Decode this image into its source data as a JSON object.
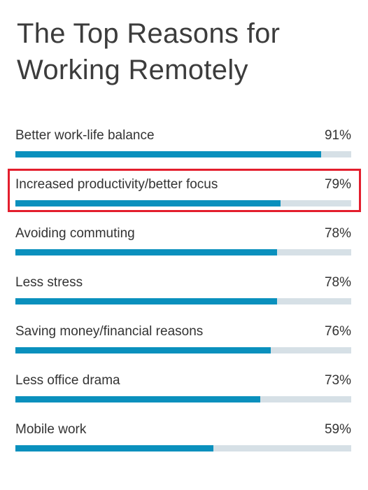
{
  "title": "The Top Reasons for Working Remotely",
  "chart_data": {
    "type": "bar",
    "orientation": "horizontal",
    "title": "The Top Reasons for Working Remotely",
    "categories": [
      "Better work-life balance",
      "Increased productivity/better focus",
      "Avoiding commuting",
      "Less stress",
      "Saving money/financial reasons",
      "Less office drama",
      "Mobile work"
    ],
    "values": [
      91,
      79,
      78,
      78,
      76,
      73,
      59
    ],
    "value_labels": [
      "91%",
      "79%",
      "78%",
      "78%",
      "76%",
      "73%",
      "59%"
    ],
    "unit": "%",
    "xlim": [
      0,
      100
    ],
    "highlighted_category": "Increased productivity/better focus",
    "colors": {
      "bar": "#0a90bd",
      "track": "#d6e0e6",
      "highlight": "#e31e2d"
    }
  }
}
